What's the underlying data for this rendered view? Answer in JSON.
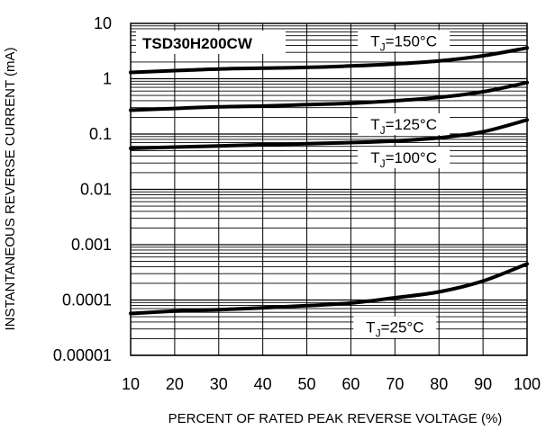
{
  "chart_data": {
    "type": "line",
    "title": "TSD30H200CW",
    "xlabel": "PERCENT OF RATED PEAK REVERSE VOLTAGE (%)",
    "ylabel": "INSTANTANEOUS REVERSE CURRENT (mA)",
    "xlim": [
      10,
      100
    ],
    "ylim": [
      1e-05,
      10
    ],
    "y_scale": "log",
    "grid": true,
    "x_ticks": [
      {
        "value": 10,
        "label": "10"
      },
      {
        "value": 20,
        "label": "20"
      },
      {
        "value": 30,
        "label": "30"
      },
      {
        "value": 40,
        "label": "40"
      },
      {
        "value": 50,
        "label": "50"
      },
      {
        "value": 60,
        "label": "60"
      },
      {
        "value": 70,
        "label": "70"
      },
      {
        "value": 80,
        "label": "80"
      },
      {
        "value": 90,
        "label": "90"
      },
      {
        "value": 100,
        "label": "100"
      }
    ],
    "y_ticks": [
      {
        "value": 10,
        "label": "10"
      },
      {
        "value": 1,
        "label": "1"
      },
      {
        "value": 0.1,
        "label": "0.1"
      },
      {
        "value": 0.01,
        "label": "0.01"
      },
      {
        "value": 0.001,
        "label": "0.001"
      },
      {
        "value": 0.0001,
        "label": "0.0001"
      },
      {
        "value": 1e-05,
        "label": "0.00001"
      }
    ],
    "series": [
      {
        "name": "TJ=150°C",
        "x": [
          10,
          20,
          30,
          40,
          50,
          60,
          70,
          80,
          90,
          100
        ],
        "y": [
          1.3,
          1.4,
          1.5,
          1.55,
          1.6,
          1.7,
          1.85,
          2.1,
          2.6,
          3.6
        ]
      },
      {
        "name": "TJ=125°C",
        "x": [
          10,
          20,
          30,
          40,
          50,
          60,
          70,
          80,
          90,
          100
        ],
        "y": [
          0.27,
          0.29,
          0.31,
          0.32,
          0.34,
          0.36,
          0.4,
          0.46,
          0.58,
          0.85
        ]
      },
      {
        "name": "TJ=100°C",
        "x": [
          10,
          20,
          30,
          40,
          50,
          60,
          70,
          80,
          90,
          100
        ],
        "y": [
          0.055,
          0.058,
          0.061,
          0.064,
          0.067,
          0.07,
          0.075,
          0.085,
          0.11,
          0.18
        ]
      },
      {
        "name": "TJ=25°C",
        "x": [
          10,
          20,
          30,
          40,
          50,
          60,
          70,
          80,
          90,
          100
        ],
        "y": [
          5.7e-05,
          6.3e-05,
          6.7e-05,
          7.2e-05,
          7.9e-05,
          8.8e-05,
          0.00011,
          0.00014,
          0.00022,
          0.00045
        ]
      }
    ],
    "annotations": [
      {
        "series": "TJ=150°C",
        "prefix": "T",
        "sub": "J",
        "suffix": "=150°C",
        "x": 72,
        "y": 4.5
      },
      {
        "series": "TJ=125°C",
        "prefix": "T",
        "sub": "J",
        "suffix": "=125°C",
        "x": 72,
        "y": 0.14
      },
      {
        "series": "TJ=100°C",
        "prefix": "T",
        "sub": "J",
        "suffix": "=100°C",
        "x": 72,
        "y": 0.035
      },
      {
        "series": "TJ=25°C",
        "prefix": "T",
        "sub": "J",
        "suffix": "=25°C",
        "x": 70,
        "y": 3e-05
      }
    ],
    "line_color": "#000000"
  }
}
